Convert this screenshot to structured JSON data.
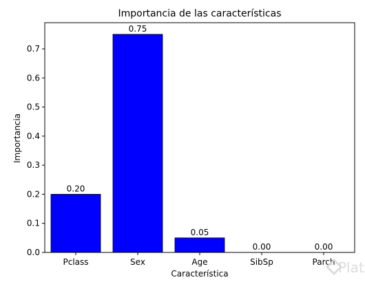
{
  "chart_data": {
    "type": "bar",
    "title": "Importancia de las características",
    "xlabel": "Característica",
    "ylabel": "Importancia",
    "categories": [
      "Pclass",
      "Sex",
      "Age",
      "SibSp",
      "Parch"
    ],
    "values": [
      0.2,
      0.75,
      0.05,
      0.0,
      0.0
    ],
    "data_labels": [
      "0.20",
      "0.75",
      "0.05",
      "0.00",
      "0.00"
    ],
    "ylim": [
      0,
      0.79
    ],
    "yticks": [
      0.0,
      0.1,
      0.2,
      0.3,
      0.4,
      0.5,
      0.6,
      0.7
    ],
    "ytick_labels": [
      "0.0",
      "0.1",
      "0.2",
      "0.3",
      "0.4",
      "0.5",
      "0.6",
      "0.7"
    ],
    "grid": false,
    "bar_color": "#0000ff",
    "bar_edge_color": "#000000"
  },
  "watermark": {
    "text": "Platzi",
    "icon": "platzi-logo-icon",
    "color": "#d9d9d9"
  }
}
